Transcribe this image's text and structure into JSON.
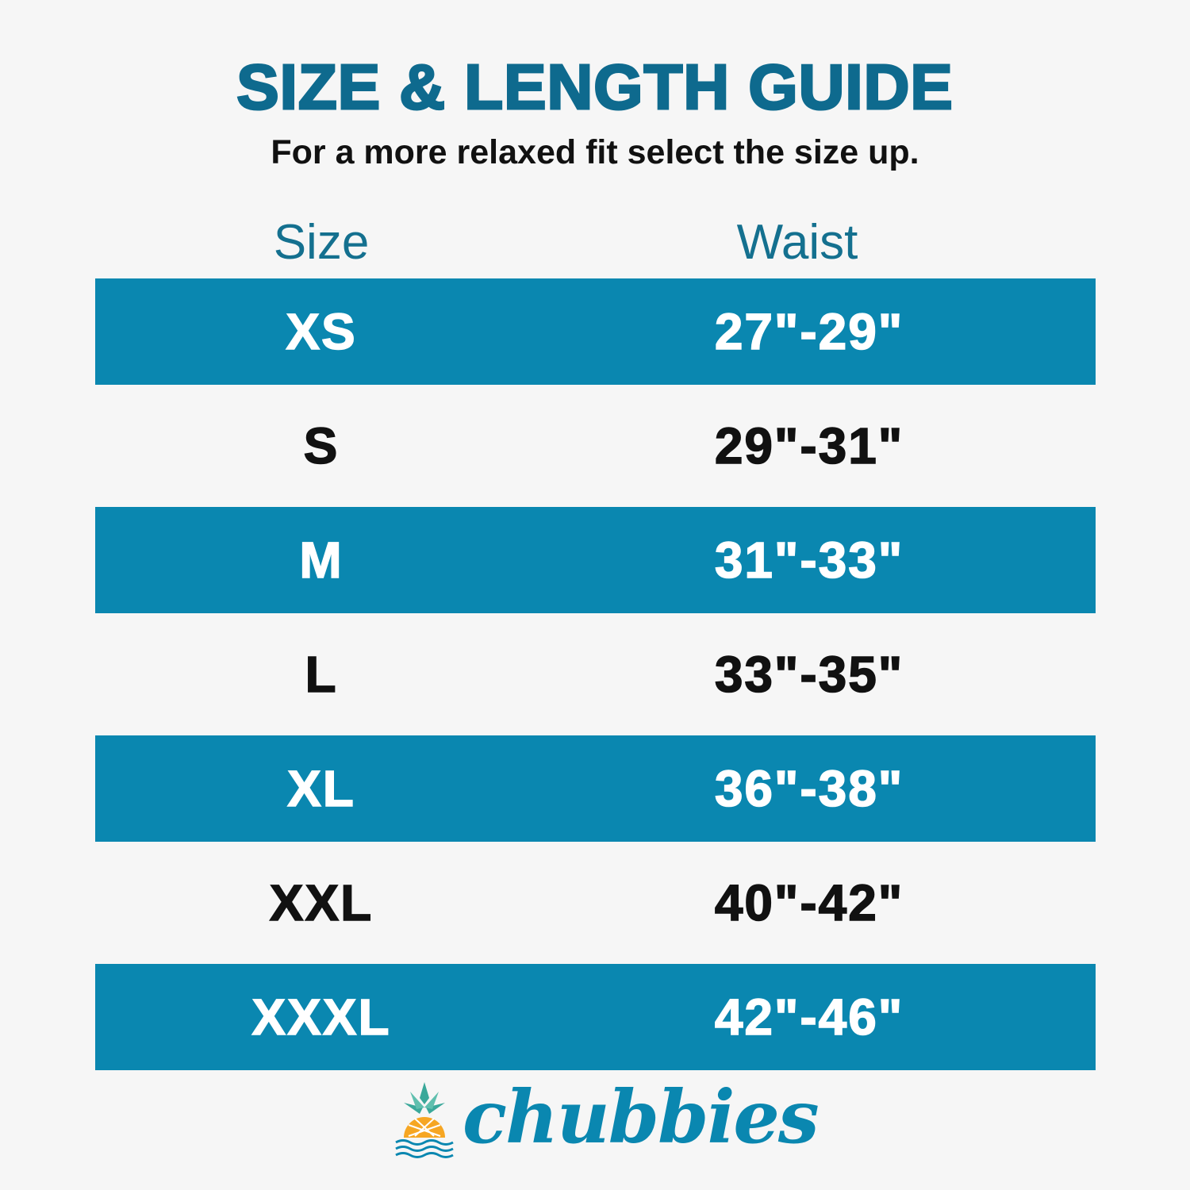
{
  "title": "SIZE & LENGTH GUIDE",
  "subtitle": "For a more relaxed fit select the size up.",
  "table": {
    "headers": [
      "Size",
      "Waist"
    ],
    "rows": [
      {
        "size": "XS",
        "waist": "27\"-29\""
      },
      {
        "size": "S",
        "waist": "29\"-31\""
      },
      {
        "size": "M",
        "waist": "31\"-33\""
      },
      {
        "size": "L",
        "waist": "33\"-35\""
      },
      {
        "size": "XL",
        "waist": "36\"-38\""
      },
      {
        "size": "XXL",
        "waist": "40\"-42\""
      },
      {
        "size": "XXXL",
        "waist": "42\"-46\""
      }
    ]
  },
  "brand": {
    "name": "chubbies",
    "icon": "pineapple-icon"
  },
  "colors": {
    "title": "#0e6a8e",
    "band": "#0a87b0",
    "background": "#f6f6f6"
  }
}
